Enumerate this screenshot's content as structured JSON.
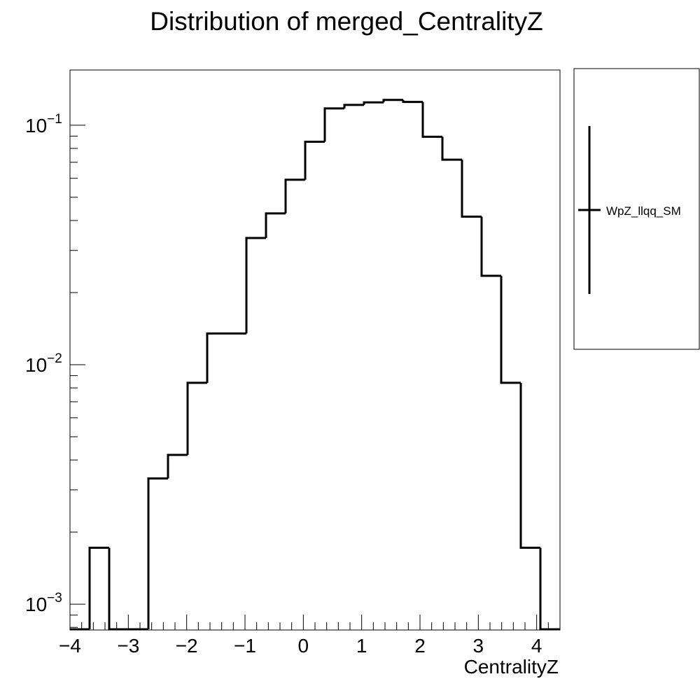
{
  "chart_data": {
    "type": "histogram",
    "title": "Distribution of merged_CentralityZ",
    "xlabel": "CentralityZ",
    "ylabel": "",
    "xlim": [
      -4.0,
      4.4
    ],
    "ylim": [
      0.00078,
      0.17
    ],
    "y_scale": "log",
    "grid": false,
    "legend_position": "right",
    "x_ticks": [
      -4,
      -3,
      -2,
      -1,
      0,
      1,
      2,
      3,
      4
    ],
    "x_tick_labels": [
      "−4",
      "−3",
      "−2",
      "−1",
      "0",
      "1",
      "2",
      "3",
      "4"
    ],
    "y_ticks": [
      {
        "value": 0.1,
        "base": "10",
        "exp": "−1"
      },
      {
        "value": 0.01,
        "base": "10",
        "exp": "−2"
      },
      {
        "value": 0.001,
        "base": "10",
        "exp": "−3"
      }
    ],
    "series": [
      {
        "name": "WpZ_llqq_SM",
        "color": "#000000",
        "bin_edges": [
          -4.0,
          -3.664,
          -3.328,
          -2.992,
          -2.656,
          -2.32,
          -1.984,
          -1.648,
          -1.312,
          -0.976,
          -0.64,
          -0.304,
          0.032,
          0.368,
          0.704,
          1.04,
          1.376,
          1.712,
          2.048,
          2.384,
          2.72,
          3.056,
          3.392,
          3.728,
          4.064,
          4.4
        ],
        "values": [
          0.00078,
          0.00172,
          0.00078,
          0.00078,
          0.00335,
          0.0042,
          0.0084,
          0.0135,
          0.0135,
          0.0338,
          0.0428,
          0.0592,
          0.0853,
          0.1175,
          0.1215,
          0.1245,
          0.1275,
          0.125,
          0.0895,
          0.0718,
          0.0415,
          0.0235,
          0.0084,
          0.00172,
          0.00078
        ]
      }
    ]
  }
}
